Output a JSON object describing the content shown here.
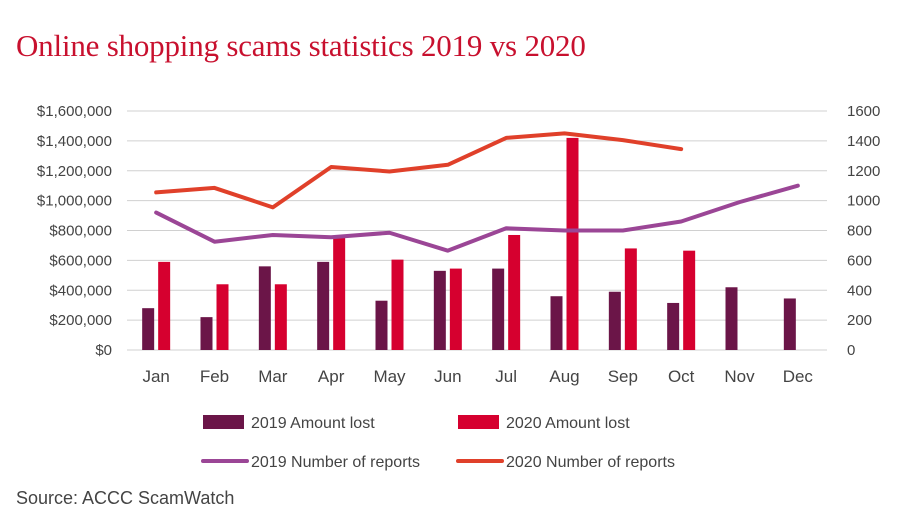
{
  "title": "Online shopping scams statistics 2019 vs 2020",
  "source": "Source: ACCC ScamWatch",
  "colors": {
    "bar_2019": "#6b1548",
    "bar_2020": "#d6002f",
    "line_2019": "#9b4696",
    "line_2020": "#e0402a",
    "grid": "#d0d0d0",
    "title": "#c8102e"
  },
  "chart_data": {
    "type": "bar",
    "title": "Online shopping scams statistics 2019 vs 2020",
    "categories": [
      "Jan",
      "Feb",
      "Mar",
      "Apr",
      "May",
      "Jun",
      "Jul",
      "Aug",
      "Sep",
      "Oct",
      "Nov",
      "Dec"
    ],
    "y_left": {
      "ticks": [
        "$0",
        "$200,000",
        "$400,000",
        "$600,000",
        "$800,000",
        "$1,000,000",
        "$1,200,000",
        "$1,400,000",
        "$1,600,000"
      ],
      "ylim": [
        0,
        1600000
      ]
    },
    "y_right": {
      "ticks": [
        "0",
        "200",
        "400",
        "600",
        "800",
        "1000",
        "1200",
        "1400",
        "1600"
      ],
      "ylim": [
        0,
        1600
      ]
    },
    "grid": true,
    "legend_position": "bottom",
    "series": [
      {
        "name": "2019 Amount lost",
        "type": "bar",
        "axis": "left",
        "values": [
          280000,
          220000,
          560000,
          590000,
          330000,
          530000,
          545000,
          360000,
          390000,
          315000,
          420000,
          345000
        ]
      },
      {
        "name": "2020 Amount lost",
        "type": "bar",
        "axis": "left",
        "values": [
          590000,
          440000,
          440000,
          760000,
          605000,
          545000,
          770000,
          1420000,
          680000,
          665000,
          null,
          null
        ]
      },
      {
        "name": "2019 Number of reports",
        "type": "line",
        "axis": "right",
        "values": [
          920,
          725,
          770,
          755,
          785,
          665,
          815,
          800,
          800,
          860,
          990,
          1100
        ]
      },
      {
        "name": "2020 Number of reports",
        "type": "line",
        "axis": "right",
        "values": [
          1055,
          1085,
          955,
          1225,
          1195,
          1240,
          1420,
          1450,
          1405,
          1345,
          null,
          null
        ]
      }
    ]
  }
}
